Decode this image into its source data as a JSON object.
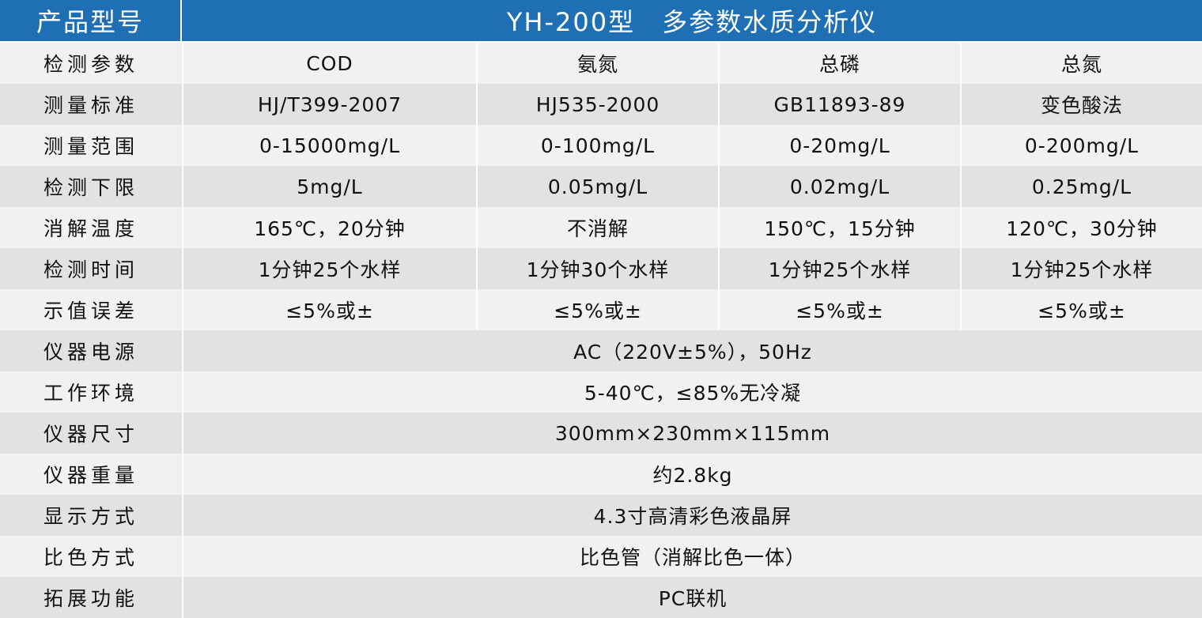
{
  "header": {
    "label": "产品型号",
    "model_title": "YH-200型　多参数水质分析仪"
  },
  "rows": [
    {
      "label": "检测参数",
      "values": [
        "COD",
        "氨氮",
        "总磷",
        "总氮"
      ]
    },
    {
      "label": "测量标准",
      "values": [
        "HJ/T399-2007",
        "HJ535-2000",
        "GB11893-89",
        "变色酸法"
      ]
    },
    {
      "label": "测量范围",
      "values": [
        "0-15000mg/L",
        "0-100mg/L",
        "0-20mg/L",
        "0-200mg/L"
      ]
    },
    {
      "label": "检测下限",
      "values": [
        "5mg/L",
        "0.05mg/L",
        "0.02mg/L",
        "0.25mg/L"
      ]
    },
    {
      "label": "消解温度",
      "values": [
        "165℃，20分钟",
        "不消解",
        "150℃，15分钟",
        "120℃，30分钟"
      ]
    },
    {
      "label": "检测时间",
      "values": [
        "1分钟25个水样",
        "1分钟30个水样",
        "1分钟25个水样",
        "1分钟25个水样"
      ]
    },
    {
      "label": "示值误差",
      "values": [
        "≤5%或±",
        "≤5%或±",
        "≤5%或±",
        "≤5%或±"
      ]
    },
    {
      "label": "仪器电源",
      "value": "AC（220V±5%），50Hz"
    },
    {
      "label": "工作环境",
      "value": "5-40℃，≤85%无冷凝"
    },
    {
      "label": "仪器尺寸",
      "value": "300mm×230mm×115mm"
    },
    {
      "label": "仪器重量",
      "value": "约2.8kg"
    },
    {
      "label": "显示方式",
      "value": "4.3寸高清彩色液晶屏"
    },
    {
      "label": "比色方式",
      "value": "比色管（消解比色一体）"
    },
    {
      "label": "拓展功能",
      "value": "PC联机"
    }
  ],
  "colors": {
    "header_bg": "#1f6fb5",
    "row_light": "#f1f1f1",
    "row_dark": "#e2e2e2"
  }
}
